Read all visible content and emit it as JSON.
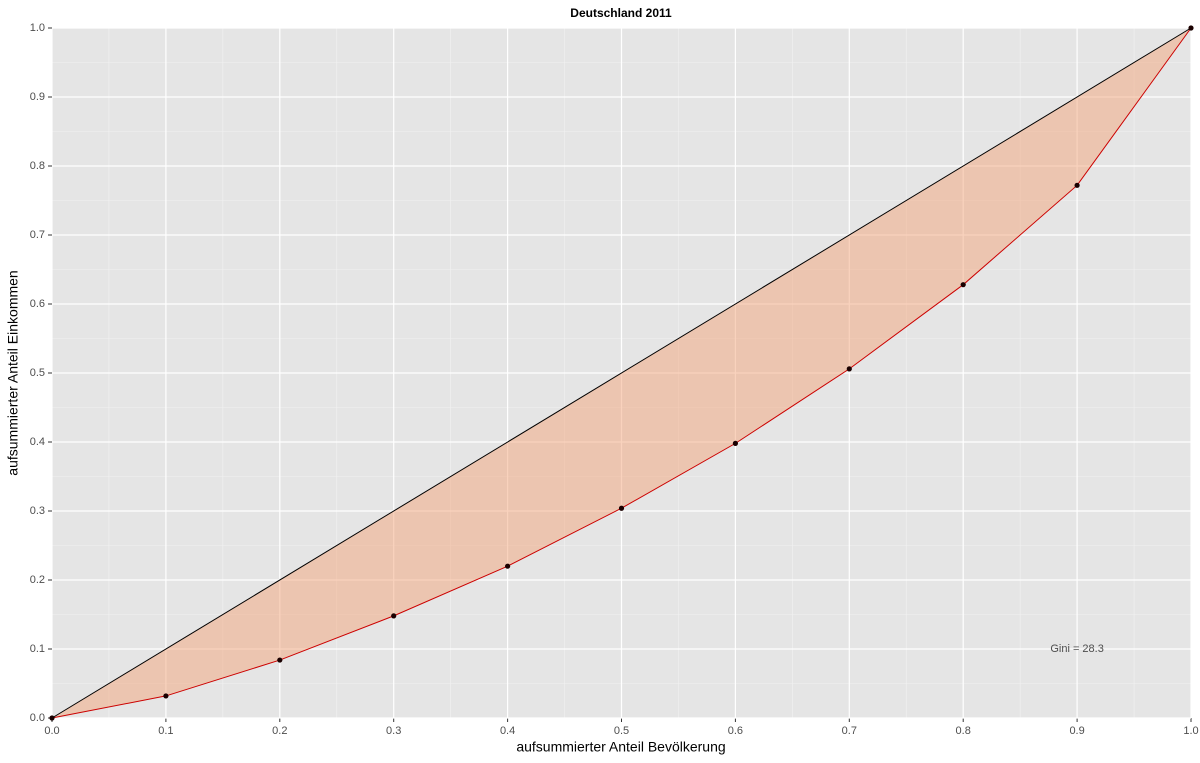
{
  "chart_data": {
    "type": "line",
    "title": "Deutschland 2011",
    "xlabel": "aufsummierter Anteil Bevölkerung",
    "ylabel": "aufsummierter Anteil Einkommen",
    "xlim": [
      0,
      1
    ],
    "ylim": [
      0,
      1
    ],
    "xticks": [
      {
        "value": 0,
        "label": "0.0"
      },
      0.1,
      0.2,
      0.3,
      0.4,
      0.5,
      0.6,
      0.7,
      0.8,
      0.9,
      {
        "value": 1,
        "label": "1.0"
      }
    ],
    "yticks": [
      {
        "value": 0,
        "label": "0.0"
      },
      0.1,
      0.2,
      0.3,
      0.4,
      0.5,
      0.6,
      0.7,
      0.8,
      0.9,
      {
        "value": 1,
        "label": "1.0"
      }
    ],
    "xminor": [
      0.05,
      0.15,
      0.25,
      0.35,
      0.45,
      0.55,
      0.65,
      0.75,
      0.85,
      0.95
    ],
    "yminor": [
      0.05,
      0.15,
      0.25,
      0.35,
      0.45,
      0.55,
      0.65,
      0.75,
      0.85,
      0.95
    ],
    "grid": true,
    "fill_color": "#f4a57c",
    "point_color": "#1a0000",
    "series": [
      {
        "color": "#000000",
        "x": [
          0,
          1
        ],
        "values": [
          0,
          1
        ]
      },
      {
        "color": "#cc0000",
        "x": [
          0,
          0.1,
          0.2,
          0.3,
          0.4,
          0.5,
          0.6,
          0.7,
          0.8,
          0.9,
          1
        ],
        "values": [
          0,
          0.032,
          0.084,
          0.148,
          0.22,
          0.304,
          0.398,
          0.506,
          0.628,
          0.772,
          1
        ],
        "points": true
      }
    ],
    "annotations": [
      {
        "text": "Gini = 28.3",
        "x": 0.9,
        "y": 0.1
      }
    ]
  }
}
